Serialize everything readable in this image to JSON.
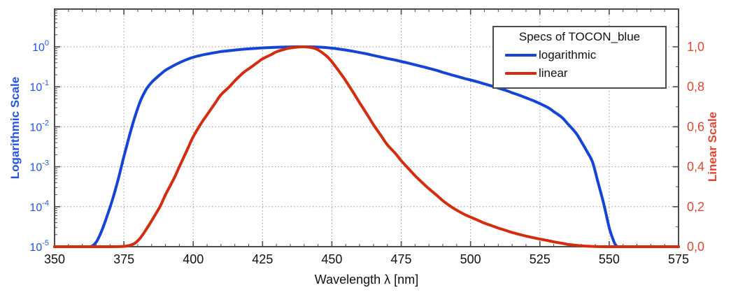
{
  "legend": {
    "title": "Specs of TOCON_blue",
    "items": [
      {
        "label": "logarithmic",
        "color_key": "blue_line"
      },
      {
        "label": "linear",
        "color_key": "red_line"
      }
    ]
  },
  "colors": {
    "blue_line": "#1545d8",
    "blue_text": "#2353ea",
    "red_line": "#d52c0f",
    "red_text": "#e24631",
    "axis": "#4c4c4c",
    "grid": "#979797",
    "tick_text": "#111111"
  },
  "chart_data": {
    "type": "line",
    "title": "Specs of TOCON_blue",
    "xlabel": "Wavelength λ [nm]",
    "ylabel_left": "Logarithmic Scale",
    "ylabel_right": "Linear Scale",
    "x_ticks": [
      350,
      375,
      400,
      425,
      450,
      475,
      500,
      525,
      550,
      575
    ],
    "x_minor_step_nm": 5,
    "x_range": [
      350,
      575
    ],
    "y_left_scale": "log",
    "y_left_tick_exponents": [
      0,
      -1,
      -2,
      -3,
      -4,
      -5
    ],
    "y_left_range": [
      1e-05,
      1
    ],
    "y_right_scale": "linear",
    "y_right_tick_labels": [
      "1,0",
      "0,8",
      "0,6",
      "0,4",
      "0,2",
      "0,0"
    ],
    "y_right_ticks": [
      1.0,
      0.8,
      0.6,
      0.4,
      0.2,
      0.0
    ],
    "y_right_minor_step": 0.1,
    "y_right_range": [
      0,
      1
    ],
    "grid": "dotted",
    "legend_position": "top-right",
    "wavelengths_nm": [
      350,
      355,
      360,
      363,
      365,
      367,
      369,
      371,
      373,
      375,
      377,
      379,
      381,
      383,
      385,
      388,
      390,
      393,
      395,
      398,
      400,
      403,
      405,
      408,
      410,
      413,
      415,
      418,
      420,
      423,
      425,
      428,
      430,
      433,
      435,
      438,
      440,
      443,
      445,
      448,
      450,
      453,
      455,
      458,
      460,
      463,
      465,
      468,
      470,
      473,
      475,
      478,
      480,
      483,
      485,
      488,
      490,
      493,
      495,
      498,
      500,
      503,
      505,
      508,
      510,
      513,
      515,
      518,
      520,
      523,
      525,
      528,
      530,
      533,
      535,
      538,
      540,
      542,
      544,
      546,
      548,
      550,
      551,
      552,
      553,
      554,
      556,
      560,
      565,
      570,
      575
    ],
    "relative_response": [
      1e-05,
      1e-05,
      1e-05,
      1e-05,
      1.3e-05,
      2.5e-05,
      6e-05,
      0.00016,
      0.0005,
      0.0018,
      0.006,
      0.018,
      0.045,
      0.085,
      0.13,
      0.2,
      0.26,
      0.34,
      0.4,
      0.49,
      0.55,
      0.62,
      0.66,
      0.72,
      0.76,
      0.8,
      0.83,
      0.87,
      0.89,
      0.92,
      0.94,
      0.96,
      0.975,
      0.988,
      0.994,
      0.999,
      1.0,
      0.995,
      0.985,
      0.955,
      0.925,
      0.87,
      0.83,
      0.765,
      0.72,
      0.655,
      0.61,
      0.55,
      0.51,
      0.465,
      0.43,
      0.385,
      0.355,
      0.315,
      0.29,
      0.255,
      0.23,
      0.2,
      0.183,
      0.16,
      0.148,
      0.13,
      0.118,
      0.103,
      0.093,
      0.08,
      0.071,
      0.06,
      0.053,
      0.044,
      0.038,
      0.03,
      0.024,
      0.017,
      0.012,
      0.007,
      0.0042,
      0.0024,
      0.0013,
      0.0004,
      0.00012,
      3e-05,
      1.8e-05,
      1.2e-05,
      1e-05,
      1e-05,
      1e-05,
      1e-05,
      1e-05,
      1e-05,
      1e-05
    ],
    "series": [
      {
        "name": "logarithmic",
        "axis": "left-log",
        "color_key": "blue_line"
      },
      {
        "name": "linear",
        "axis": "right-linear",
        "color_key": "red_line"
      }
    ]
  }
}
